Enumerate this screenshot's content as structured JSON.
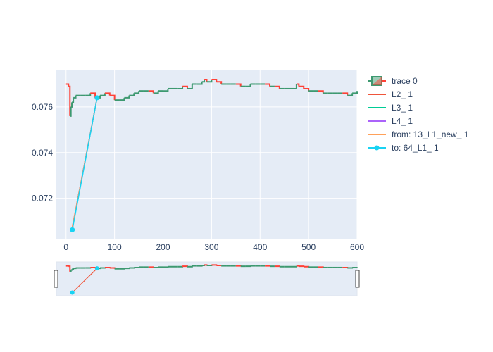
{
  "chart_data": {
    "type": "line",
    "title": "",
    "xlabel": "",
    "ylabel": "",
    "xlim": [
      -20,
      600
    ],
    "ylim": [
      0.0702,
      0.0776
    ],
    "x_ticks": [
      0,
      100,
      200,
      300,
      400,
      500,
      600
    ],
    "x_tick_labels": [
      "0",
      "100",
      "200",
      "300",
      "400",
      "500",
      "600"
    ],
    "y_ticks": [
      0.072,
      0.074,
      0.076
    ],
    "y_tick_labels": [
      "0.072",
      "0.074",
      "0.076"
    ],
    "rangeslider": true,
    "colors": {
      "plot_bg": "#e5ecf6",
      "increasing": "#3d9970",
      "decreasing": "#ff4136",
      "L2": "#ef553b",
      "L3": "#00cc96",
      "L4": "#ab63fa",
      "from": "#ffa15a",
      "to": "#19d3f3"
    },
    "legend": {
      "placement": "top-right",
      "entries": [
        {
          "name": "trace 0",
          "color": "#3d9970",
          "icon": "candlestick-icon"
        },
        {
          "name": "L2_ 1",
          "color": "#ef553b",
          "icon": "line-icon"
        },
        {
          "name": "L3_ 1",
          "color": "#00cc96",
          "icon": "line-icon"
        },
        {
          "name": "L4_ 1",
          "color": "#ab63fa",
          "icon": "line-icon"
        },
        {
          "name": "from: 13_L1_new_ 1",
          "color": "#ffa15a",
          "icon": "line-icon"
        },
        {
          "name": "to: 64_L1_ 1",
          "color": "#19d3f3",
          "icon": "marker-line-icon"
        }
      ]
    },
    "series": [
      {
        "name": "trace 0",
        "kind": "candlestick-close",
        "x": [
          0,
          5,
          8,
          10,
          12,
          15,
          20,
          30,
          40,
          50,
          60,
          70,
          80,
          90,
          100,
          110,
          120,
          130,
          140,
          150,
          160,
          170,
          180,
          190,
          200,
          210,
          220,
          230,
          240,
          250,
          260,
          270,
          280,
          285,
          290,
          300,
          310,
          320,
          330,
          340,
          350,
          360,
          370,
          380,
          390,
          400,
          410,
          420,
          430,
          440,
          450,
          460,
          470,
          475,
          480,
          490,
          500,
          510,
          520,
          530,
          540,
          550,
          560,
          570,
          580,
          590,
          600
        ],
        "y": [
          0.077,
          0.0769,
          0.0756,
          0.076,
          0.0762,
          0.0764,
          0.0765,
          0.0765,
          0.0765,
          0.0766,
          0.0764,
          0.0765,
          0.0766,
          0.0765,
          0.0763,
          0.0763,
          0.0764,
          0.0765,
          0.0766,
          0.0767,
          0.0767,
          0.0767,
          0.0766,
          0.0767,
          0.0767,
          0.0768,
          0.0768,
          0.0768,
          0.0769,
          0.0768,
          0.077,
          0.077,
          0.0771,
          0.0772,
          0.0771,
          0.0772,
          0.0771,
          0.077,
          0.077,
          0.077,
          0.077,
          0.0769,
          0.0769,
          0.077,
          0.077,
          0.077,
          0.077,
          0.0769,
          0.0769,
          0.0768,
          0.0768,
          0.0768,
          0.0768,
          0.077,
          0.0769,
          0.0768,
          0.0767,
          0.0767,
          0.0767,
          0.0766,
          0.0766,
          0.0766,
          0.0766,
          0.0766,
          0.0765,
          0.0766,
          0.0767
        ]
      },
      {
        "name": "L2_ 1",
        "x": [
          13,
          64
        ],
        "y": [
          0.07075,
          0.0764
        ]
      },
      {
        "name": "L3_ 1",
        "x": [
          13,
          64
        ],
        "y": [
          0.07068,
          0.0764
        ]
      },
      {
        "name": "L4_ 1",
        "x": [
          13,
          64
        ],
        "y": [
          0.0707,
          0.0764
        ]
      },
      {
        "name": "from: 13_L1_new_ 1",
        "x": [
          13,
          64
        ],
        "y": [
          0.07072,
          0.0764
        ]
      },
      {
        "name": "to: 64_L1_ 1",
        "x": [
          13,
          64
        ],
        "y": [
          0.07062,
          0.0764
        ],
        "markers": true
      }
    ]
  }
}
